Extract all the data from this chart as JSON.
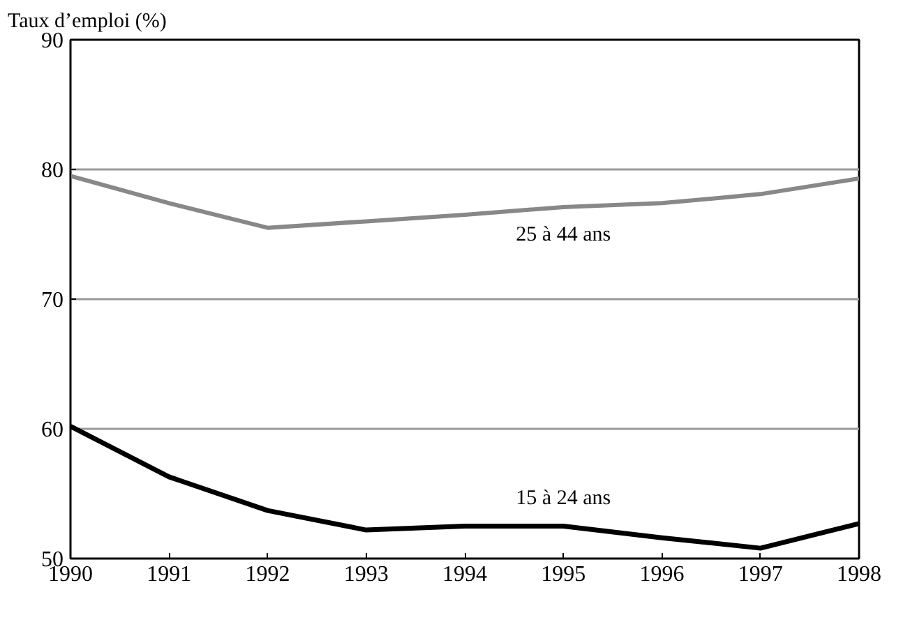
{
  "chart_data": {
    "type": "line",
    "ylabel": "Taux d’emploi (%)",
    "x": [
      1990,
      1991,
      1992,
      1993,
      1994,
      1995,
      1996,
      1997,
      1998
    ],
    "series": [
      {
        "name": "25 à 44 ans",
        "color": "#888888",
        "values": [
          79.5,
          77.4,
          75.5,
          76.0,
          76.5,
          77.1,
          77.4,
          78.1,
          79.3
        ]
      },
      {
        "name": "15 à 24 ans",
        "color": "#000000",
        "values": [
          60.2,
          56.3,
          53.7,
          52.2,
          52.5,
          52.5,
          51.6,
          50.8,
          52.7
        ]
      }
    ],
    "xlim": [
      1990,
      1998
    ],
    "xticks": [
      1990,
      1991,
      1992,
      1993,
      1994,
      1995,
      1996,
      1997,
      1998
    ],
    "ylim": [
      50,
      90
    ],
    "yticks": [
      50,
      60,
      70,
      80,
      90
    ],
    "grid": "y",
    "marker": "none",
    "line_style": "solid"
  }
}
